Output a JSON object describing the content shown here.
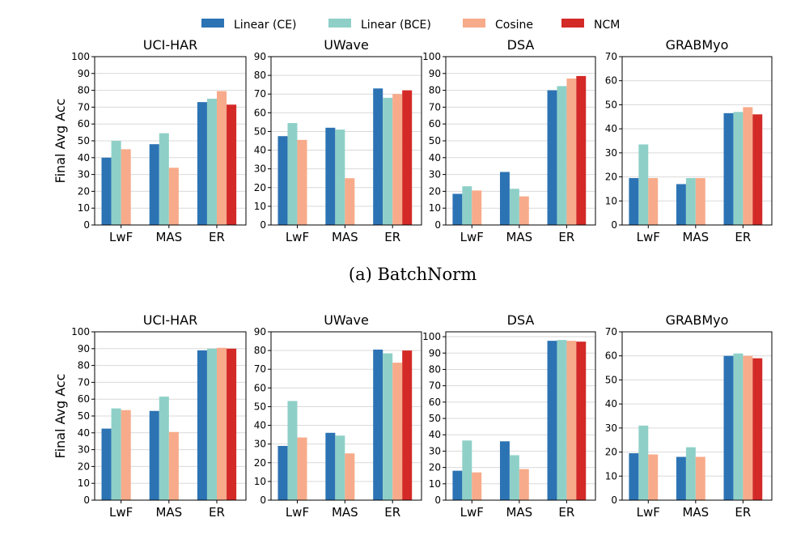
{
  "legend": [
    {
      "name": "Linear (CE)",
      "color": "#2c73b4"
    },
    {
      "name": "Linear (BCE)",
      "color": "#8ed0c8"
    },
    {
      "name": "Cosine",
      "color": "#f7ab8a"
    },
    {
      "name": "NCM",
      "color": "#d32a27"
    }
  ],
  "captions": [
    "(a)  BatchNorm"
  ],
  "chart_data": [
    {
      "type": "bar",
      "row": 0,
      "col": 0,
      "title": "UCI-HAR",
      "ylabel": "Final Avg Acc",
      "categories": [
        "LwF",
        "MAS",
        "ER"
      ],
      "ylim": [
        0,
        100
      ],
      "yticks": [
        0,
        10,
        20,
        30,
        40,
        50,
        60,
        70,
        80,
        90,
        100
      ],
      "series": [
        {
          "name": "Linear (CE)",
          "values": [
            40,
            48,
            73
          ]
        },
        {
          "name": "Linear (BCE)",
          "values": [
            50,
            54.5,
            75
          ]
        },
        {
          "name": "Cosine",
          "values": [
            45,
            34,
            79.5
          ]
        },
        {
          "name": "NCM",
          "values": [
            null,
            null,
            71.5
          ]
        }
      ]
    },
    {
      "type": "bar",
      "row": 0,
      "col": 1,
      "title": "UWave",
      "ylabel": "",
      "categories": [
        "LwF",
        "MAS",
        "ER"
      ],
      "ylim": [
        0,
        90
      ],
      "yticks": [
        0,
        10,
        20,
        30,
        40,
        50,
        60,
        70,
        80,
        90
      ],
      "series": [
        {
          "name": "Linear (CE)",
          "values": [
            47.5,
            52,
            73
          ]
        },
        {
          "name": "Linear (BCE)",
          "values": [
            54.5,
            51,
            68
          ]
        },
        {
          "name": "Cosine",
          "values": [
            45.5,
            25,
            70
          ]
        },
        {
          "name": "NCM",
          "values": [
            null,
            null,
            72
          ]
        }
      ]
    },
    {
      "type": "bar",
      "row": 0,
      "col": 2,
      "title": "DSA",
      "ylabel": "",
      "categories": [
        "LwF",
        "MAS",
        "ER"
      ],
      "ylim": [
        0,
        100
      ],
      "yticks": [
        0,
        10,
        20,
        30,
        40,
        50,
        60,
        70,
        80,
        90,
        100
      ],
      "series": [
        {
          "name": "Linear (CE)",
          "values": [
            18.5,
            31.5,
            80
          ]
        },
        {
          "name": "Linear (BCE)",
          "values": [
            23,
            21.5,
            82.5
          ]
        },
        {
          "name": "Cosine",
          "values": [
            20.5,
            17,
            87
          ]
        },
        {
          "name": "NCM",
          "values": [
            null,
            null,
            88.5
          ]
        }
      ]
    },
    {
      "type": "bar",
      "row": 0,
      "col": 3,
      "title": "GRABMyo",
      "ylabel": "",
      "categories": [
        "LwF",
        "MAS",
        "ER"
      ],
      "ylim": [
        0,
        70
      ],
      "yticks": [
        0,
        10,
        20,
        30,
        40,
        50,
        60,
        70
      ],
      "series": [
        {
          "name": "Linear (CE)",
          "values": [
            19.5,
            17,
            46.5
          ]
        },
        {
          "name": "Linear (BCE)",
          "values": [
            33.5,
            19.5,
            47
          ]
        },
        {
          "name": "Cosine",
          "values": [
            19.5,
            19.5,
            49
          ]
        },
        {
          "name": "NCM",
          "values": [
            null,
            null,
            46
          ]
        }
      ]
    },
    {
      "type": "bar",
      "row": 1,
      "col": 0,
      "title": "UCI-HAR",
      "ylabel": "Final Avg Acc",
      "categories": [
        "LwF",
        "MAS",
        "ER"
      ],
      "ylim": [
        0,
        100
      ],
      "yticks": [
        0,
        10,
        20,
        30,
        40,
        50,
        60,
        70,
        80,
        90,
        100
      ],
      "series": [
        {
          "name": "Linear (CE)",
          "values": [
            42.5,
            53,
            89
          ]
        },
        {
          "name": "Linear (BCE)",
          "values": [
            54.5,
            61.5,
            90
          ]
        },
        {
          "name": "Cosine",
          "values": [
            53.5,
            40.5,
            90.5
          ]
        },
        {
          "name": "NCM",
          "values": [
            null,
            null,
            90
          ]
        }
      ]
    },
    {
      "type": "bar",
      "row": 1,
      "col": 1,
      "title": "UWave",
      "ylabel": "",
      "categories": [
        "LwF",
        "MAS",
        "ER"
      ],
      "ylim": [
        0,
        90
      ],
      "yticks": [
        0,
        10,
        20,
        30,
        40,
        50,
        60,
        70,
        80,
        90
      ],
      "series": [
        {
          "name": "Linear (CE)",
          "values": [
            29,
            36,
            80.5
          ]
        },
        {
          "name": "Linear (BCE)",
          "values": [
            53,
            34.5,
            78.5
          ]
        },
        {
          "name": "Cosine",
          "values": [
            33.5,
            25,
            73.5
          ]
        },
        {
          "name": "NCM",
          "values": [
            null,
            null,
            80
          ]
        }
      ]
    },
    {
      "type": "bar",
      "row": 1,
      "col": 2,
      "title": "DSA",
      "ylabel": "",
      "categories": [
        "LwF",
        "MAS",
        "ER"
      ],
      "ylim": [
        0,
        103
      ],
      "yticks": [
        0,
        10,
        20,
        30,
        40,
        50,
        60,
        70,
        80,
        90,
        100
      ],
      "series": [
        {
          "name": "Linear (CE)",
          "values": [
            18,
            36,
            97.5
          ]
        },
        {
          "name": "Linear (BCE)",
          "values": [
            36.5,
            27.5,
            98
          ]
        },
        {
          "name": "Cosine",
          "values": [
            17,
            19,
            97.5
          ]
        },
        {
          "name": "NCM",
          "values": [
            null,
            null,
            97
          ]
        }
      ]
    },
    {
      "type": "bar",
      "row": 1,
      "col": 3,
      "title": "GRABMyo",
      "ylabel": "",
      "categories": [
        "LwF",
        "MAS",
        "ER"
      ],
      "ylim": [
        0,
        70
      ],
      "yticks": [
        0,
        10,
        20,
        30,
        40,
        50,
        60,
        70
      ],
      "series": [
        {
          "name": "Linear (CE)",
          "values": [
            19.5,
            18,
            60
          ]
        },
        {
          "name": "Linear (BCE)",
          "values": [
            31,
            22,
            61
          ]
        },
        {
          "name": "Cosine",
          "values": [
            19,
            18,
            60
          ]
        },
        {
          "name": "NCM",
          "values": [
            null,
            null,
            59
          ]
        }
      ]
    }
  ]
}
